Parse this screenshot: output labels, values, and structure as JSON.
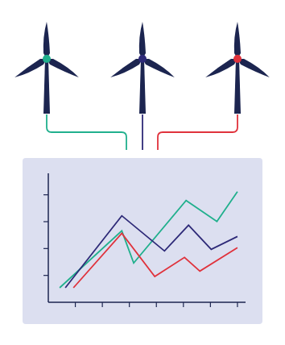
{
  "chart_data": {
    "type": "line",
    "series": [
      {
        "color": "#21b08d",
        "x": [
          0.42,
          2.72,
          3.16,
          5.1,
          6.24,
          7.0
        ],
        "values": [
          0.54,
          2.66,
          1.46,
          3.79,
          3.01,
          4.12
        ]
      },
      {
        "color": "#2e2a78",
        "x": [
          0.63,
          2.72,
          4.3,
          5.19,
          6.03,
          7.0
        ],
        "values": [
          0.54,
          3.22,
          1.91,
          2.87,
          1.97,
          2.45
        ]
      },
      {
        "color": "#e0323c",
        "x": [
          0.93,
          2.72,
          3.94,
          5.04,
          5.61,
          7.0
        ],
        "values": [
          0.54,
          2.57,
          0.96,
          1.67,
          1.16,
          2.03
        ]
      }
    ],
    "xlim": [
      0,
      7.3
    ],
    "ylim": [
      0,
      4.8
    ],
    "xticks": [
      1,
      2,
      3,
      4,
      5,
      6,
      7
    ],
    "yticks": [
      1,
      2,
      3,
      4
    ],
    "tick_labels": false
  }
}
